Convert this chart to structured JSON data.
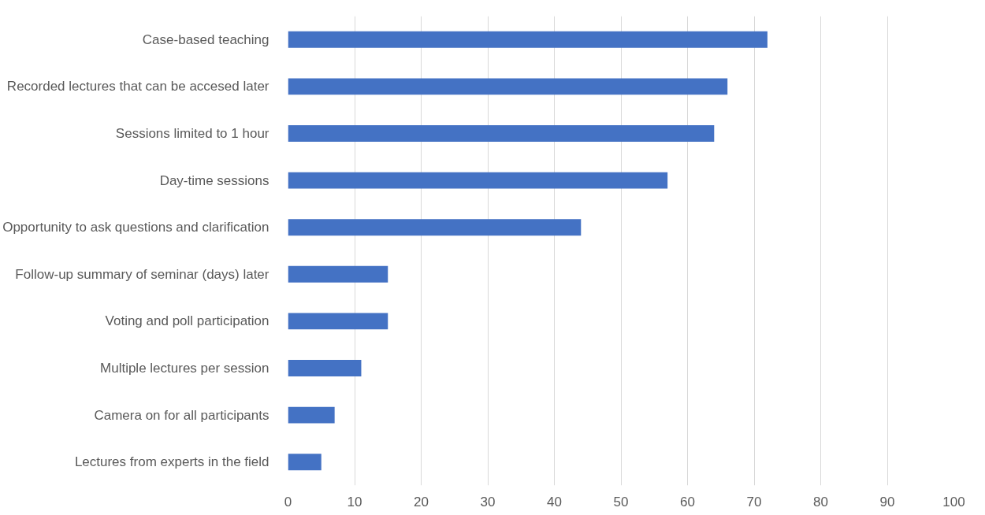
{
  "chart_data": {
    "type": "bar",
    "orientation": "horizontal",
    "categories": [
      "Case-based teaching",
      "Recorded lectures that can be accesed later",
      "Sessions limited to 1 hour",
      "Day-time sessions",
      "Opportunity to ask questions and clarification",
      "Follow-up summary of seminar (days) later",
      "Voting and poll participation",
      "Multiple lectures per session",
      "Camera on for all participants",
      "Lectures from experts in the field"
    ],
    "values": [
      72,
      66,
      64,
      57,
      44,
      15,
      15,
      11,
      7,
      5
    ],
    "color": "#4472c4",
    "xlim": [
      0,
      100
    ],
    "xticks": [
      0,
      10,
      20,
      30,
      40,
      50,
      60,
      70,
      80,
      90,
      100
    ],
    "grid": "x"
  }
}
